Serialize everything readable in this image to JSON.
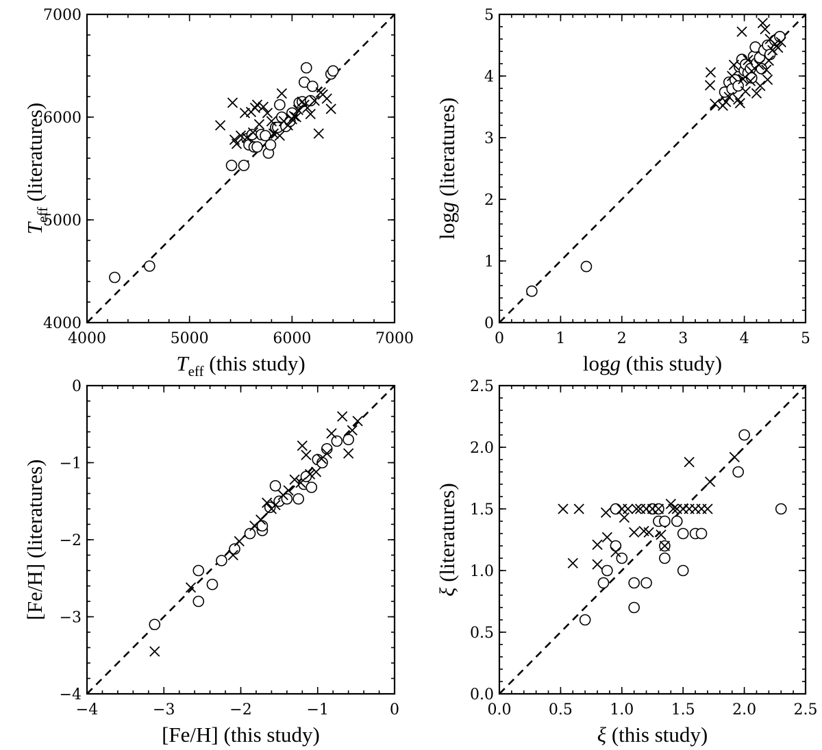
{
  "chart_data": [
    {
      "id": "teff",
      "type": "scatter",
      "xlabel": {
        "main": "T",
        "sub": "eff",
        "rest": " (this study)",
        "italic_main": true
      },
      "ylabel": {
        "main": "T",
        "sub": "eff",
        "rest": " (literatures)",
        "italic_main": true
      },
      "xlim": [
        4000,
        7000
      ],
      "ylim": [
        4000,
        7000
      ],
      "xticks": [
        4000,
        5000,
        6000,
        7000
      ],
      "xtick_labels": [
        "4000",
        "5000",
        "6000",
        "7000"
      ],
      "yticks": [
        4000,
        5000,
        6000,
        7000
      ],
      "ytick_labels": [
        "4000",
        "5000",
        "6000",
        "7000"
      ],
      "minor_step": 200,
      "one_to_one_line": true,
      "series": [
        {
          "marker": "circle",
          "points": [
            [
              4270,
              4440
            ],
            [
              4610,
              4550
            ],
            [
              5410,
              5530
            ],
            [
              5530,
              5530
            ],
            [
              5560,
              5790
            ],
            [
              5580,
              5730
            ],
            [
              5610,
              5830
            ],
            [
              5630,
              5710
            ],
            [
              5660,
              5710
            ],
            [
              5700,
              5830
            ],
            [
              5740,
              5820
            ],
            [
              5770,
              5650
            ],
            [
              5790,
              5730
            ],
            [
              5840,
              5900
            ],
            [
              5860,
              5900
            ],
            [
              5880,
              6120
            ],
            [
              5900,
              6000
            ],
            [
              5940,
              5910
            ],
            [
              5980,
              5960
            ],
            [
              6000,
              6040
            ],
            [
              6070,
              6140
            ],
            [
              6100,
              6150
            ],
            [
              6120,
              6340
            ],
            [
              6140,
              6480
            ],
            [
              6180,
              6160
            ],
            [
              6200,
              6300
            ],
            [
              6380,
              6420
            ],
            [
              6400,
              6450
            ]
          ]
        },
        {
          "marker": "cross",
          "points": [
            [
              5300,
              5920
            ],
            [
              5420,
              6140
            ],
            [
              5440,
              5780
            ],
            [
              5460,
              5740
            ],
            [
              5500,
              5820
            ],
            [
              5540,
              6040
            ],
            [
              5560,
              5800
            ],
            [
              5600,
              6050
            ],
            [
              5620,
              5850
            ],
            [
              5640,
              6090
            ],
            [
              5660,
              6120
            ],
            [
              5680,
              5930
            ],
            [
              5720,
              6100
            ],
            [
              5760,
              6040
            ],
            [
              5800,
              5960
            ],
            [
              5820,
              5840
            ],
            [
              5880,
              5820
            ],
            [
              5900,
              6230
            ],
            [
              5920,
              5960
            ],
            [
              5960,
              5920
            ],
            [
              6000,
              5980
            ],
            [
              6020,
              6010
            ],
            [
              6040,
              6000
            ],
            [
              6060,
              6070
            ],
            [
              6100,
              6150
            ],
            [
              6120,
              6120
            ],
            [
              6150,
              6090
            ],
            [
              6180,
              6030
            ],
            [
              6220,
              6160
            ],
            [
              6260,
              5840
            ],
            [
              6280,
              6240
            ],
            [
              6300,
              6220
            ],
            [
              6340,
              6180
            ],
            [
              6380,
              6080
            ]
          ]
        }
      ]
    },
    {
      "id": "logg",
      "type": "scatter",
      "xlabel": {
        "main": "log",
        "sub": "",
        "rest": " (this study)",
        "italic_suffix": "g"
      },
      "ylabel": {
        "main": "log",
        "sub": "",
        "rest": " (literatures)",
        "italic_suffix": "g"
      },
      "xlim": [
        0,
        5
      ],
      "ylim": [
        0,
        5
      ],
      "xticks": [
        0,
        1,
        2,
        3,
        4,
        5
      ],
      "xtick_labels": [
        "0",
        "1",
        "2",
        "3",
        "4",
        "5"
      ],
      "yticks": [
        0,
        1,
        2,
        3,
        4,
        5
      ],
      "ytick_labels": [
        "0",
        "1",
        "2",
        "3",
        "4",
        "5"
      ],
      "minor_step": 0.2,
      "one_to_one_line": true,
      "series": [
        {
          "marker": "circle",
          "points": [
            [
              0.53,
              0.51
            ],
            [
              1.42,
              0.91
            ],
            [
              3.68,
              3.74
            ],
            [
              3.75,
              3.9
            ],
            [
              3.8,
              3.79
            ],
            [
              3.85,
              3.94
            ],
            [
              3.9,
              3.84
            ],
            [
              3.92,
              4.15
            ],
            [
              3.96,
              4.27
            ],
            [
              4.0,
              4.09
            ],
            [
              4.02,
              4.19
            ],
            [
              4.06,
              4.05
            ],
            [
              4.1,
              4.12
            ],
            [
              4.12,
              3.97
            ],
            [
              4.15,
              4.32
            ],
            [
              4.18,
              4.47
            ],
            [
              4.2,
              4.21
            ],
            [
              4.25,
              4.3
            ],
            [
              4.28,
              4.12
            ],
            [
              4.32,
              4.42
            ],
            [
              4.38,
              4.5
            ],
            [
              4.42,
              4.35
            ],
            [
              4.5,
              4.58
            ],
            [
              4.58,
              4.64
            ]
          ]
        },
        {
          "marker": "cross",
          "points": [
            [
              3.44,
              3.85
            ],
            [
              3.45,
              4.06
            ],
            [
              3.52,
              3.55
            ],
            [
              3.65,
              3.52
            ],
            [
              3.7,
              3.58
            ],
            [
              3.75,
              3.66
            ],
            [
              3.8,
              4.0
            ],
            [
              3.83,
              4.18
            ],
            [
              3.9,
              3.62
            ],
            [
              3.93,
              3.56
            ],
            [
              3.96,
              4.72
            ],
            [
              3.98,
              3.95
            ],
            [
              4.02,
              3.75
            ],
            [
              4.06,
              4.26
            ],
            [
              4.1,
              3.92
            ],
            [
              4.12,
              4.08
            ],
            [
              4.2,
              3.72
            ],
            [
              4.24,
              4.18
            ],
            [
              4.26,
              3.84
            ],
            [
              4.3,
              4.86
            ],
            [
              4.34,
              4.76
            ],
            [
              4.36,
              4.1
            ],
            [
              4.38,
              3.94
            ],
            [
              4.4,
              4.25
            ],
            [
              4.42,
              4.6
            ],
            [
              4.46,
              4.42
            ],
            [
              4.5,
              4.52
            ],
            [
              4.55,
              4.46
            ],
            [
              4.6,
              4.55
            ]
          ]
        }
      ]
    },
    {
      "id": "feh",
      "type": "scatter",
      "xlabel": {
        "main": "[Fe/H]",
        "sub": "",
        "rest": " (this study)"
      },
      "ylabel": {
        "main": "[Fe/H]",
        "sub": "",
        "rest": " (literatures)"
      },
      "xlim": [
        -4,
        0
      ],
      "ylim": [
        -4,
        0
      ],
      "xticks": [
        -4,
        -3,
        -2,
        -1,
        0
      ],
      "xtick_labels": [
        "−4",
        "−3",
        "−2",
        "−1",
        "0"
      ],
      "yticks": [
        -4,
        -3,
        -2,
        -1,
        0
      ],
      "ytick_labels": [
        "−4",
        "−3",
        "−2",
        "−1",
        "0"
      ],
      "minor_step": 0.2,
      "one_to_one_line": true,
      "series": [
        {
          "marker": "circle",
          "points": [
            [
              -3.12,
              -3.1
            ],
            [
              -2.55,
              -2.4
            ],
            [
              -2.55,
              -2.8
            ],
            [
              -2.37,
              -2.58
            ],
            [
              -2.25,
              -2.27
            ],
            [
              -2.08,
              -2.12
            ],
            [
              -1.88,
              -1.92
            ],
            [
              -1.72,
              -1.88
            ],
            [
              -1.72,
              -1.82
            ],
            [
              -1.62,
              -1.58
            ],
            [
              -1.55,
              -1.3
            ],
            [
              -1.5,
              -1.5
            ],
            [
              -1.4,
              -1.47
            ],
            [
              -1.25,
              -1.47
            ],
            [
              -1.18,
              -1.28
            ],
            [
              -1.15,
              -1.18
            ],
            [
              -1.08,
              -1.32
            ],
            [
              -1.0,
              -0.96
            ],
            [
              -0.94,
              -1.0
            ],
            [
              -0.88,
              -0.82
            ],
            [
              -0.75,
              -0.72
            ],
            [
              -0.6,
              -0.7
            ]
          ]
        },
        {
          "marker": "cross",
          "points": [
            [
              -3.12,
              -3.45
            ],
            [
              -2.65,
              -2.62
            ],
            [
              -2.1,
              -2.2
            ],
            [
              -2.02,
              -2.02
            ],
            [
              -1.82,
              -1.82
            ],
            [
              -1.74,
              -1.74
            ],
            [
              -1.66,
              -1.52
            ],
            [
              -1.6,
              -1.6
            ],
            [
              -1.55,
              -1.55
            ],
            [
              -1.45,
              -1.42
            ],
            [
              -1.38,
              -1.36
            ],
            [
              -1.3,
              -1.22
            ],
            [
              -1.22,
              -1.26
            ],
            [
              -1.2,
              -0.78
            ],
            [
              -1.15,
              -0.9
            ],
            [
              -1.1,
              -1.15
            ],
            [
              -1.02,
              -1.12
            ],
            [
              -0.95,
              -0.95
            ],
            [
              -0.88,
              -0.88
            ],
            [
              -0.82,
              -0.62
            ],
            [
              -0.68,
              -0.4
            ],
            [
              -0.6,
              -0.88
            ],
            [
              -0.55,
              -0.58
            ],
            [
              -0.48,
              -0.46
            ]
          ]
        }
      ]
    },
    {
      "id": "xi",
      "type": "scatter",
      "xlabel": {
        "main": "ξ",
        "sub": "",
        "rest": " (this study)",
        "italic_main": true
      },
      "ylabel": {
        "main": "ξ",
        "sub": "",
        "rest": " (literatures)",
        "italic_main": true
      },
      "xlim": [
        0,
        2.5
      ],
      "ylim": [
        0,
        2.5
      ],
      "xticks": [
        0,
        0.5,
        1,
        1.5,
        2,
        2.5
      ],
      "xtick_labels": [
        "0.0",
        "0.5",
        "1.0",
        "1.5",
        "2.0",
        "2.5"
      ],
      "yticks": [
        0,
        0.5,
        1,
        1.5,
        2,
        2.5
      ],
      "ytick_labels": [
        "0.0",
        "0.5",
        "1.0",
        "1.5",
        "2.0",
        "2.5"
      ],
      "minor_step": 0.1,
      "one_to_one_line": true,
      "series": [
        {
          "marker": "circle",
          "points": [
            [
              0.7,
              0.6
            ],
            [
              0.85,
              0.9
            ],
            [
              0.88,
              1.0
            ],
            [
              0.95,
              1.2
            ],
            [
              0.95,
              1.5
            ],
            [
              1.0,
              1.1
            ],
            [
              1.1,
              0.9
            ],
            [
              1.1,
              0.7
            ],
            [
              1.2,
              0.9
            ],
            [
              1.25,
              1.5
            ],
            [
              1.3,
              1.5
            ],
            [
              1.3,
              1.4
            ],
            [
              1.35,
              1.4
            ],
            [
              1.35,
              1.2
            ],
            [
              1.35,
              1.1
            ],
            [
              1.45,
              1.4
            ],
            [
              1.5,
              1.3
            ],
            [
              1.5,
              1.0
            ],
            [
              1.6,
              1.3
            ],
            [
              1.65,
              1.3
            ],
            [
              1.95,
              1.8
            ],
            [
              2.0,
              2.1
            ],
            [
              2.3,
              1.5
            ]
          ]
        },
        {
          "marker": "cross",
          "points": [
            [
              0.52,
              1.5
            ],
            [
              0.6,
              1.06
            ],
            [
              0.65,
              1.5
            ],
            [
              0.8,
              1.21
            ],
            [
              0.8,
              1.05
            ],
            [
              0.87,
              1.47
            ],
            [
              0.88,
              1.27
            ],
            [
              0.95,
              1.15
            ],
            [
              1.0,
              1.5
            ],
            [
              1.02,
              1.43
            ],
            [
              1.05,
              1.5
            ],
            [
              1.1,
              1.31
            ],
            [
              1.12,
              1.5
            ],
            [
              1.15,
              1.5
            ],
            [
              1.18,
              1.32
            ],
            [
              1.2,
              1.5
            ],
            [
              1.22,
              1.31
            ],
            [
              1.25,
              1.5
            ],
            [
              1.3,
              1.5
            ],
            [
              1.32,
              1.29
            ],
            [
              1.35,
              1.2
            ],
            [
              1.4,
              1.54
            ],
            [
              1.42,
              1.5
            ],
            [
              1.45,
              1.5
            ],
            [
              1.5,
              1.5
            ],
            [
              1.55,
              1.88
            ],
            [
              1.55,
              1.5
            ],
            [
              1.6,
              1.5
            ],
            [
              1.65,
              1.5
            ],
            [
              1.7,
              1.5
            ],
            [
              1.72,
              1.72
            ],
            [
              1.92,
              1.92
            ]
          ]
        }
      ]
    }
  ]
}
